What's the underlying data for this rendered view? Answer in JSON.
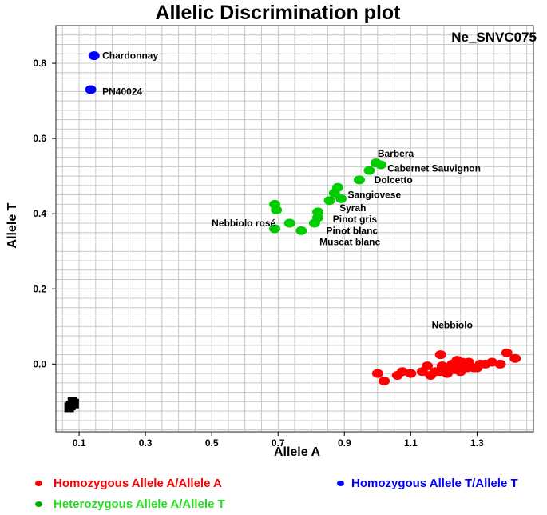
{
  "chart_data": {
    "type": "scatter",
    "title": "Allelic Discrimination plot",
    "plot_id": "Ne_SNVC075",
    "xlabel": "Allele A",
    "ylabel": "Allele T",
    "xlim": [
      0.03,
      1.47
    ],
    "ylim": [
      -0.18,
      0.9
    ],
    "x_ticks": [
      "0.1",
      "0.3",
      "0.5",
      "0.7",
      "0.9",
      "1.1",
      "1.3"
    ],
    "x_tick_values": [
      0.1,
      0.3,
      0.5,
      0.7,
      0.9,
      1.1,
      1.3
    ],
    "y_ticks": [
      "0.0",
      "0.2",
      "0.4",
      "0.6",
      "0.8"
    ],
    "y_tick_values": [
      0.0,
      0.2,
      0.4,
      0.6,
      0.8
    ],
    "grid": true,
    "series": [
      {
        "name": "Homozygous Allele A/Allele A",
        "color": "#ff0000",
        "marker": "ellipse",
        "points": [
          [
            1.0,
            -0.025
          ],
          [
            1.02,
            -0.045
          ],
          [
            1.06,
            -0.03
          ],
          [
            1.075,
            -0.02
          ],
          [
            1.135,
            -0.02
          ],
          [
            1.15,
            -0.005
          ],
          [
            1.16,
            -0.03
          ],
          [
            1.175,
            -0.02
          ],
          [
            1.19,
            -0.02
          ],
          [
            1.19,
            0.025
          ],
          [
            1.195,
            -0.005
          ],
          [
            1.21,
            -0.025
          ],
          [
            1.215,
            -0.01
          ],
          [
            1.225,
            0.0
          ],
          [
            1.23,
            -0.015
          ],
          [
            1.24,
            0.01
          ],
          [
            1.245,
            -0.005
          ],
          [
            1.25,
            -0.02
          ],
          [
            1.255,
            0.005
          ],
          [
            1.26,
            0.0
          ],
          [
            1.27,
            -0.01
          ],
          [
            1.275,
            0.005
          ],
          [
            1.29,
            -0.01
          ],
          [
            1.3,
            -0.01
          ],
          [
            1.31,
            0.0
          ],
          [
            1.325,
            0.0
          ],
          [
            1.345,
            0.005
          ],
          [
            1.37,
            0.0
          ],
          [
            1.39,
            0.03
          ],
          [
            1.415,
            0.015
          ],
          [
            1.1,
            -0.025
          ],
          [
            1.2,
            -0.015
          ]
        ]
      },
      {
        "name": "Heterozygous Allele A/Allele T",
        "color": "#00cc00",
        "marker": "ellipse",
        "points": [
          [
            0.69,
            0.425
          ],
          [
            0.695,
            0.41
          ],
          [
            0.69,
            0.36
          ],
          [
            0.735,
            0.375
          ],
          [
            0.77,
            0.355
          ],
          [
            0.81,
            0.375
          ],
          [
            0.82,
            0.39
          ],
          [
            0.82,
            0.405
          ],
          [
            0.855,
            0.435
          ],
          [
            0.87,
            0.455
          ],
          [
            0.88,
            0.47
          ],
          [
            0.89,
            0.44
          ],
          [
            0.945,
            0.49
          ],
          [
            0.975,
            0.515
          ],
          [
            0.995,
            0.535
          ],
          [
            1.01,
            0.53
          ]
        ],
        "labels": [
          {
            "text": "Barbera",
            "x": 1.0,
            "y": 0.56
          },
          {
            "text": "Cabernet Sauvignon",
            "x": 1.03,
            "y": 0.52
          },
          {
            "text": "Dolcetto",
            "x": 0.99,
            "y": 0.49
          },
          {
            "text": "Sangiovese",
            "x": 0.91,
            "y": 0.45
          },
          {
            "text": "Syrah",
            "x": 0.885,
            "y": 0.415
          },
          {
            "text": "Pinot gris",
            "x": 0.865,
            "y": 0.385
          },
          {
            "text": "Pinot blanc",
            "x": 0.845,
            "y": 0.355
          },
          {
            "text": "Muscat blanc",
            "x": 0.825,
            "y": 0.325
          },
          {
            "text": "Nebbiolo rosé",
            "x": 0.5,
            "y": 0.375
          }
        ]
      },
      {
        "name": "Homozygous Allele T/Allele T",
        "color": "#0000ff",
        "marker": "ellipse",
        "points": [
          [
            0.145,
            0.82
          ],
          [
            0.135,
            0.73
          ]
        ],
        "labels": [
          {
            "text": "Chardonnay",
            "x": 0.17,
            "y": 0.82
          },
          {
            "text": "PN40024",
            "x": 0.17,
            "y": 0.725
          }
        ]
      },
      {
        "name": "",
        "color": "#000000",
        "marker": "square",
        "points": [
          [
            0.075,
            -0.11
          ],
          [
            0.085,
            -0.105
          ],
          [
            0.08,
            -0.1
          ],
          [
            0.07,
            -0.115
          ]
        ]
      }
    ],
    "annotations": [
      {
        "text": "Nebbiolo",
        "x": 1.225,
        "y": 0.095
      }
    ]
  },
  "legend": {
    "items": [
      {
        "label": "Homozygous Allele A/Allele A",
        "color": "#ff0000"
      },
      {
        "label": "Heterozygous Allele A/Allele T",
        "color": "#00cc00"
      },
      {
        "label": "Homozygous Allele T/Allele T",
        "color": "#0000ff"
      }
    ]
  }
}
